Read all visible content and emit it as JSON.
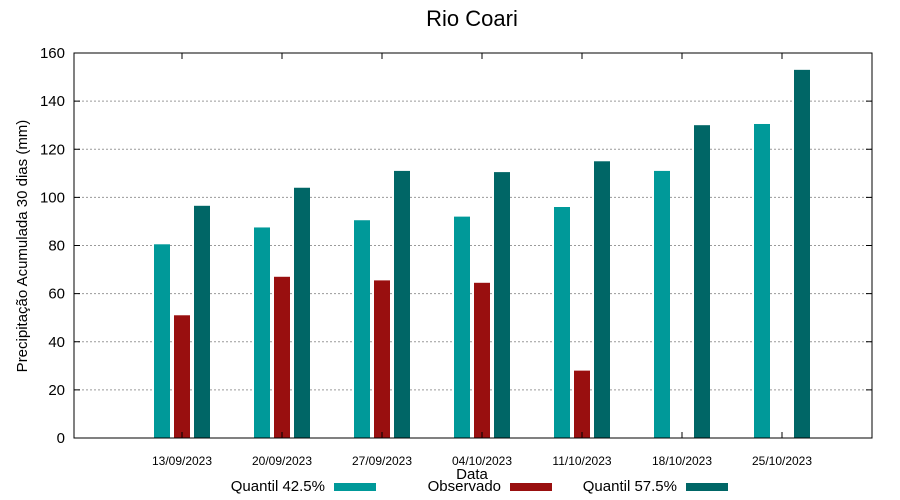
{
  "chart_data": {
    "type": "bar",
    "title": "Rio Coari",
    "xlabel": "Data",
    "ylabel": "Precipitação Acumulada 30 dias (mm)",
    "ylim": [
      0,
      160
    ],
    "yticks": [
      0,
      20,
      40,
      60,
      80,
      100,
      120,
      140,
      160
    ],
    "grid": true,
    "legend_position": "bottom",
    "categories": [
      "13/09/2023",
      "20/09/2023",
      "27/09/2023",
      "04/10/2023",
      "11/10/2023",
      "18/10/2023",
      "25/10/2023"
    ],
    "series": [
      {
        "name": "Quantil 42.5%",
        "color": "#009999",
        "values": [
          80.5,
          87.5,
          90.5,
          92,
          96,
          111,
          130.5
        ]
      },
      {
        "name": "Observado",
        "color": "#990f0f",
        "values": [
          51,
          67,
          65.5,
          64.5,
          28,
          null,
          null
        ]
      },
      {
        "name": "Quantil 57.5%",
        "color": "#006666",
        "values": [
          96.5,
          104,
          111,
          110.5,
          115,
          130,
          153
        ]
      }
    ]
  }
}
